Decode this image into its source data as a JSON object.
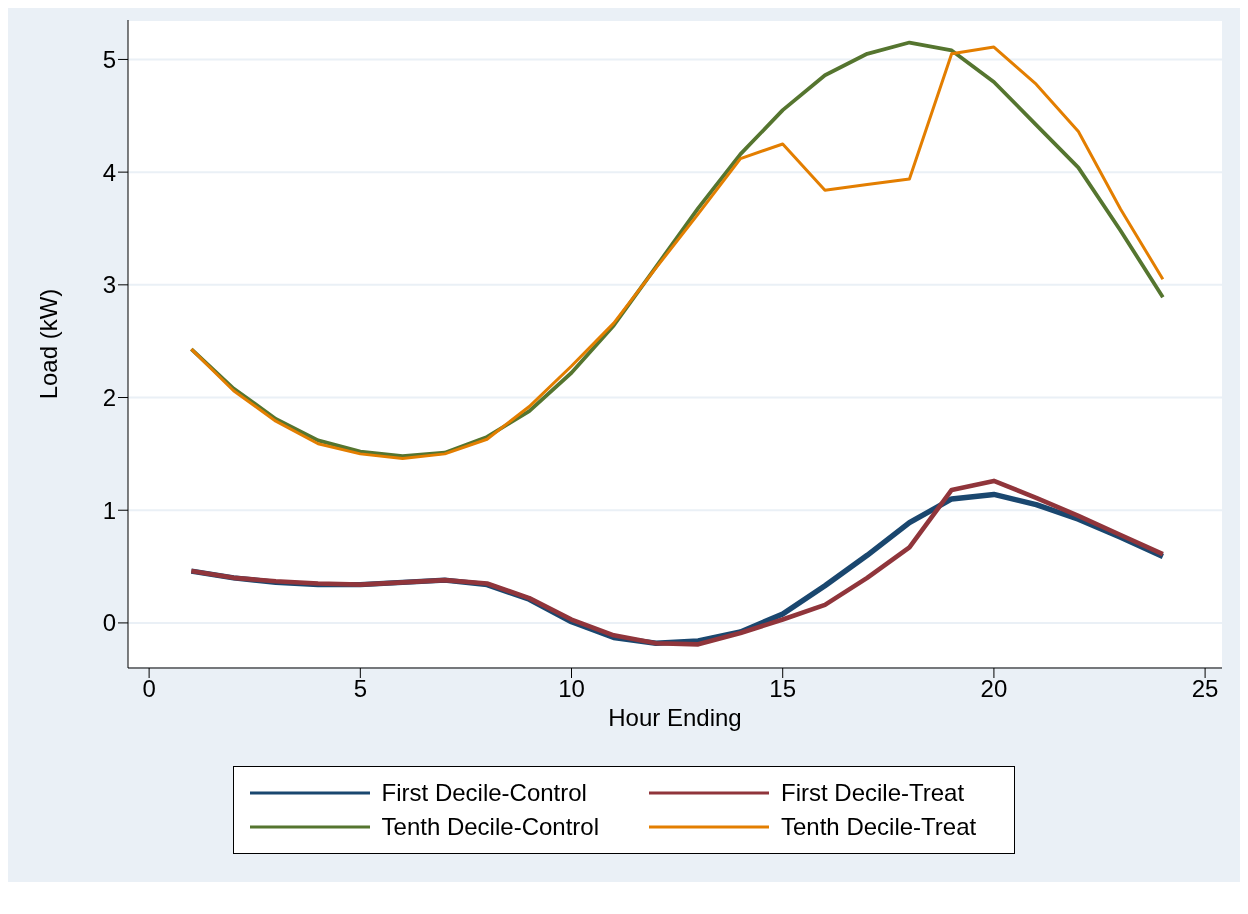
{
  "chart_data": {
    "type": "line",
    "xlabel": "Hour Ending",
    "ylabel": "Load (kW)",
    "x": [
      1,
      2,
      3,
      4,
      5,
      6,
      7,
      8,
      9,
      10,
      11,
      12,
      13,
      14,
      15,
      16,
      17,
      18,
      19,
      20,
      21,
      22,
      23,
      24
    ],
    "xlim": [
      -0.5,
      25.4
    ],
    "xticks": [
      0,
      5,
      10,
      15,
      20,
      25
    ],
    "ylim": [
      -0.4,
      5.35
    ],
    "yticks": [
      0,
      1,
      2,
      3,
      4,
      5
    ],
    "grid": "y",
    "legend": "bottom",
    "marker": "none",
    "line_style": "solid",
    "series": [
      {
        "name": "First Decile-Control",
        "color": "#1a476f",
        "values": [
          0.46,
          0.4,
          0.36,
          0.34,
          0.34,
          0.36,
          0.38,
          0.34,
          0.21,
          0.01,
          -0.13,
          -0.18,
          -0.16,
          -0.08,
          0.08,
          0.33,
          0.6,
          0.89,
          1.1,
          1.14,
          1.05,
          0.92,
          0.76,
          0.59
        ]
      },
      {
        "name": "First Decile-Treat",
        "color": "#90353b",
        "values": [
          0.46,
          0.4,
          0.37,
          0.35,
          0.34,
          0.36,
          0.38,
          0.35,
          0.22,
          0.03,
          -0.11,
          -0.18,
          -0.19,
          -0.09,
          0.03,
          0.16,
          0.4,
          0.67,
          1.18,
          1.26,
          1.11,
          0.95,
          0.78,
          0.61
        ]
      },
      {
        "name": "Tenth Decile-Control",
        "color": "#55752f",
        "values": [
          2.43,
          2.08,
          1.81,
          1.62,
          1.52,
          1.48,
          1.51,
          1.65,
          1.88,
          2.22,
          2.64,
          3.16,
          3.68,
          4.16,
          4.55,
          4.86,
          5.05,
          5.15,
          5.08,
          4.8,
          4.42,
          4.04,
          3.48,
          2.89
        ]
      },
      {
        "name": "Tenth Decile-Treat",
        "color": "#e37e00",
        "values": [
          2.43,
          2.06,
          1.79,
          1.59,
          1.5,
          1.46,
          1.5,
          1.63,
          1.92,
          2.28,
          2.66,
          3.15,
          3.63,
          4.12,
          4.25,
          3.84,
          3.89,
          3.94,
          5.05,
          5.11,
          4.78,
          4.36,
          3.67,
          3.05
        ]
      }
    ]
  }
}
